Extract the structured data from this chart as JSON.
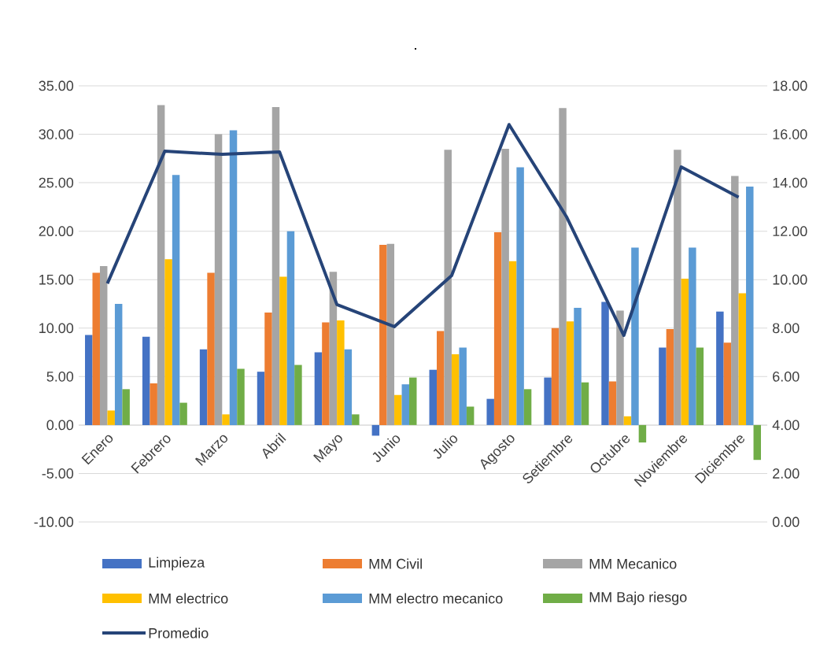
{
  "chart_data": {
    "type": "bar",
    "title": ".",
    "categories": [
      "Enero",
      "Febrero",
      "Marzo",
      "Abril",
      "Mayo",
      "Junio",
      "Julio",
      "Agosto",
      "Setiembre",
      "Octubre",
      "Noviembre",
      "Diciembre"
    ],
    "series": [
      {
        "name": "Limpieza",
        "color": "#4472c4",
        "values": [
          9.3,
          9.1,
          7.8,
          5.5,
          7.5,
          -1.1,
          5.7,
          2.7,
          4.9,
          12.7,
          8.0,
          11.7
        ]
      },
      {
        "name": "MM Civil",
        "color": "#ed7d31",
        "values": [
          15.7,
          4.3,
          15.7,
          11.6,
          10.6,
          18.6,
          9.7,
          19.9,
          10.0,
          4.5,
          9.9,
          8.5
        ]
      },
      {
        "name": "MM Mecanico",
        "color": "#a5a5a5",
        "values": [
          16.4,
          33.0,
          30.0,
          32.8,
          15.8,
          18.7,
          28.4,
          28.5,
          32.7,
          11.8,
          28.4,
          25.7
        ]
      },
      {
        "name": "MM electrico",
        "color": "#ffc000",
        "values": [
          1.5,
          17.1,
          1.1,
          15.3,
          10.8,
          3.1,
          7.3,
          16.9,
          10.7,
          0.9,
          15.1,
          13.6
        ]
      },
      {
        "name": "MM electro mecanico",
        "color": "#5b9bd5",
        "values": [
          12.5,
          25.8,
          30.4,
          20.0,
          7.8,
          4.2,
          8.0,
          26.6,
          12.1,
          18.3,
          18.3,
          24.6
        ]
      },
      {
        "name": "MM Bajo riesgo",
        "color": "#70ad47",
        "values": [
          3.7,
          2.3,
          5.8,
          6.2,
          1.1,
          4.9,
          1.9,
          3.7,
          4.4,
          -1.8,
          8.0,
          -3.6
        ]
      },
      {
        "name": "Promedio",
        "color": "#264478",
        "type": "line",
        "axis": "y2",
        "values": [
          9.84,
          15.3,
          15.17,
          15.27,
          8.97,
          8.06,
          10.17,
          16.4,
          12.6,
          7.7,
          14.65,
          13.4
        ]
      }
    ],
    "ylim": [
      -10,
      35
    ],
    "yticks": [
      {
        "value": -10,
        "label": "-10.00"
      },
      {
        "value": -5,
        "label": "-5.00"
      },
      {
        "value": 0,
        "label": "0.00"
      },
      {
        "value": 5,
        "label": "5.00"
      },
      {
        "value": 10,
        "label": "10.00"
      },
      {
        "value": 15,
        "label": "15.00"
      },
      {
        "value": 20,
        "label": "20.00"
      },
      {
        "value": 25,
        "label": "25.00"
      },
      {
        "value": 30,
        "label": "30.00"
      },
      {
        "value": 35,
        "label": "35.00"
      }
    ],
    "y2lim": [
      0,
      18
    ],
    "y2ticks": [
      {
        "value": 0,
        "label": "0.00"
      },
      {
        "value": 2,
        "label": "2.00"
      },
      {
        "value": 4,
        "label": "4.00"
      },
      {
        "value": 6,
        "label": "6.00"
      },
      {
        "value": 8,
        "label": "8.00"
      },
      {
        "value": 10,
        "label": "10.00"
      },
      {
        "value": 12,
        "label": "12.00"
      },
      {
        "value": 14,
        "label": "14.00"
      },
      {
        "value": 16,
        "label": "16.00"
      },
      {
        "value": 18,
        "label": "18.00"
      }
    ],
    "grid": "y",
    "legend": "bottom"
  }
}
